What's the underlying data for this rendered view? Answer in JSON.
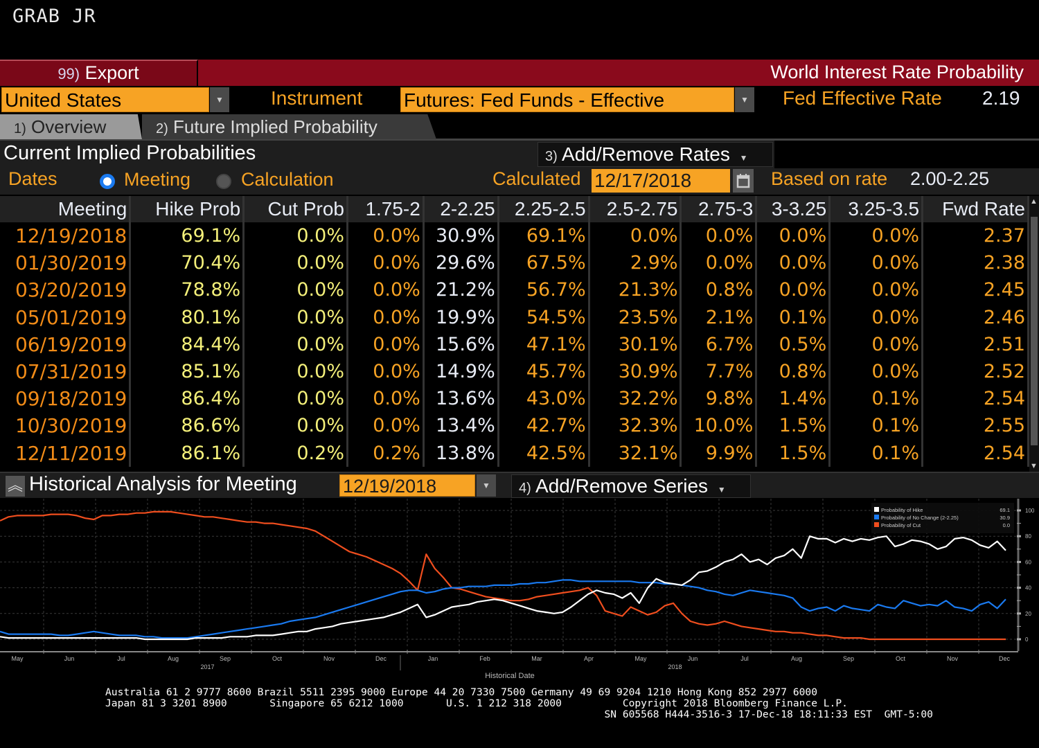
{
  "command": "GRAB JR",
  "titlebar": {
    "export_num": "99)",
    "export_label": "Export",
    "app_title": "World Interest Rate Probability"
  },
  "controls": {
    "country": "United States",
    "instrument_label": "Instrument",
    "instrument": "Futures: Fed Funds - Effective",
    "fed_rate_label": "Fed Effective Rate",
    "fed_rate_value": "2.19"
  },
  "tabs": [
    {
      "num": "1)",
      "label": "Overview",
      "active": false
    },
    {
      "num": "2)",
      "label": "Future Implied Probability",
      "active": true
    }
  ],
  "section": {
    "title": "Current Implied Probabilities",
    "add_remove_num": "3)",
    "add_remove_label": "Add/Remove Rates"
  },
  "dates_row": {
    "label": "Dates",
    "option_meeting": "Meeting",
    "option_calculation": "Calculation",
    "selected": "Meeting",
    "calculated_label": "Calculated",
    "calculated_date": "12/17/2018",
    "based_label": "Based on rate",
    "based_value": "2.00-2.25"
  },
  "table": {
    "columns": [
      "Meeting",
      "Hike Prob",
      "Cut Prob",
      "1.75-2",
      "2-2.25",
      "2.25-2.5",
      "2.5-2.75",
      "2.75-3",
      "3-3.25",
      "3.25-3.5",
      "Fwd Rate"
    ],
    "rows": [
      [
        "12/19/2018",
        "69.1%",
        "0.0%",
        "0.0%",
        "30.9%",
        "69.1%",
        "0.0%",
        "0.0%",
        "0.0%",
        "0.0%",
        "2.37"
      ],
      [
        "01/30/2019",
        "70.4%",
        "0.0%",
        "0.0%",
        "29.6%",
        "67.5%",
        "2.9%",
        "0.0%",
        "0.0%",
        "0.0%",
        "2.38"
      ],
      [
        "03/20/2019",
        "78.8%",
        "0.0%",
        "0.0%",
        "21.2%",
        "56.7%",
        "21.3%",
        "0.8%",
        "0.0%",
        "0.0%",
        "2.45"
      ],
      [
        "05/01/2019",
        "80.1%",
        "0.0%",
        "0.0%",
        "19.9%",
        "54.5%",
        "23.5%",
        "2.1%",
        "0.1%",
        "0.0%",
        "2.46"
      ],
      [
        "06/19/2019",
        "84.4%",
        "0.0%",
        "0.0%",
        "15.6%",
        "47.1%",
        "30.1%",
        "6.7%",
        "0.5%",
        "0.0%",
        "2.51"
      ],
      [
        "07/31/2019",
        "85.1%",
        "0.0%",
        "0.0%",
        "14.9%",
        "45.7%",
        "30.9%",
        "7.7%",
        "0.8%",
        "0.0%",
        "2.52"
      ],
      [
        "09/18/2019",
        "86.4%",
        "0.0%",
        "0.0%",
        "13.6%",
        "43.0%",
        "32.2%",
        "9.8%",
        "1.4%",
        "0.1%",
        "2.54"
      ],
      [
        "10/30/2019",
        "86.6%",
        "0.0%",
        "0.0%",
        "13.4%",
        "42.7%",
        "32.3%",
        "10.0%",
        "1.5%",
        "0.1%",
        "2.55"
      ],
      [
        "12/11/2019",
        "86.1%",
        "0.2%",
        "0.2%",
        "13.8%",
        "42.5%",
        "32.1%",
        "9.9%",
        "1.5%",
        "0.1%",
        "2.54"
      ]
    ]
  },
  "historical": {
    "title": "Historical Analysis for Meeting",
    "meeting_date": "12/19/2018",
    "add_series_num": "4)",
    "add_series_label": "Add/Remove Series"
  },
  "chart_data": {
    "type": "line",
    "title": "",
    "xlabel": "Historical Date",
    "ylabel": "",
    "ylim": [
      0,
      100
    ],
    "yticks": [
      0,
      20,
      40,
      60,
      80,
      100
    ],
    "grid": true,
    "legend_position": "top-right",
    "x_month_labels": [
      "May",
      "Jun",
      "Jul",
      "Aug",
      "Sep",
      "Oct",
      "Nov",
      "Dec",
      "Jan",
      "Feb",
      "Mar",
      "Apr",
      "May",
      "Jun",
      "Jul",
      "Aug",
      "Sep",
      "Oct",
      "Nov",
      "Dec"
    ],
    "x_year_labels": [
      {
        "label": "2017",
        "after_month_index": 4
      },
      {
        "label": "2018",
        "after_month_index": 13
      }
    ],
    "x_start": "2017-05-01",
    "x_end": "2018-12-17",
    "series": [
      {
        "name": "Probability of Hike",
        "color": "#ffffff",
        "last_value": "69.1",
        "values": [
          2,
          1,
          1,
          1,
          1,
          1,
          1,
          1,
          1,
          1,
          1,
          1,
          1,
          1,
          1,
          1,
          1,
          0,
          0,
          0,
          0,
          0,
          0,
          1,
          1,
          1,
          1,
          2,
          2,
          2,
          3,
          3,
          3,
          4,
          5,
          6,
          6,
          8,
          9,
          10,
          12,
          13,
          14,
          15,
          16,
          17,
          19,
          21,
          24,
          27,
          17,
          19,
          22,
          25,
          26,
          27,
          29,
          30,
          31,
          30,
          28,
          26,
          24,
          22,
          21,
          20,
          21,
          25,
          30,
          35,
          38,
          36,
          35,
          32,
          36,
          28,
          40,
          47,
          44,
          43,
          42,
          46,
          52,
          53,
          56,
          60,
          62,
          66,
          60,
          62,
          58,
          63,
          65,
          70,
          63,
          80,
          78,
          78,
          75,
          78,
          76,
          78,
          77,
          79,
          80,
          72,
          74,
          77,
          76,
          74,
          70,
          72,
          78,
          79,
          77,
          73,
          71,
          76,
          69
        ]
      },
      {
        "name": "Probability of No Change (2-2.25)",
        "color": "#1a7af0",
        "last_value": "30.9",
        "values": [
          6,
          4,
          4,
          4,
          4,
          4,
          4,
          3,
          3,
          4,
          5,
          6,
          5,
          4,
          3,
          3,
          3,
          2,
          2,
          1,
          1,
          1,
          1,
          2,
          3,
          4,
          5,
          6,
          7,
          8,
          9,
          10,
          11,
          12,
          14,
          15,
          16,
          17,
          19,
          21,
          23,
          25,
          27,
          29,
          31,
          33,
          35,
          37,
          38,
          38,
          36,
          37,
          39,
          40,
          40,
          41,
          41,
          41,
          42,
          42,
          42,
          43,
          43,
          44,
          44,
          45,
          46,
          46,
          45,
          45,
          45,
          45,
          45,
          45,
          45,
          44,
          44,
          44,
          43,
          43,
          42,
          41,
          40,
          38,
          37,
          35,
          34,
          36,
          38,
          37,
          36,
          35,
          34,
          32,
          25,
          22,
          24,
          25,
          22,
          26,
          24,
          23,
          22,
          27,
          25,
          24,
          30,
          28,
          26,
          27,
          26,
          30,
          25,
          24,
          22,
          27,
          29,
          24,
          31
        ]
      },
      {
        "name": "Probability of Cut",
        "color": "#f04e1e",
        "last_value": "0.0",
        "values": [
          92,
          95,
          96,
          96,
          96,
          96,
          97,
          97,
          97,
          96,
          94,
          93,
          96,
          96,
          97,
          97,
          98,
          98,
          99,
          99,
          99,
          98,
          97,
          96,
          95,
          95,
          94,
          93,
          92,
          91,
          91,
          90,
          90,
          89,
          88,
          87,
          86,
          84,
          80,
          76,
          72,
          68,
          66,
          64,
          61,
          58,
          55,
          51,
          45,
          38,
          66,
          55,
          48,
          40,
          39,
          37,
          35,
          33,
          32,
          31,
          30,
          30,
          31,
          33,
          34,
          35,
          36,
          37,
          38,
          40,
          34,
          22,
          20,
          18,
          25,
          22,
          19,
          21,
          26,
          28,
          20,
          14,
          12,
          11,
          12,
          14,
          12,
          10,
          9,
          8,
          7,
          6,
          6,
          5,
          5,
          4,
          3,
          3,
          2,
          1,
          1,
          1,
          0,
          0,
          0,
          0,
          0,
          0,
          0,
          0,
          0,
          0,
          0,
          0,
          0,
          0,
          0,
          0,
          0
        ]
      }
    ]
  },
  "footer": {
    "line1": "Australia 61 2 9777 8600 Brazil 5511 2395 9000 Europe 44 20 7330 7500 Germany 49 69 9204 1210 Hong Kong 852 2977 6000",
    "line2": "Japan 81 3 3201 8900       Singapore 65 6212 1000       U.S. 1 212 318 2000          Copyright 2018 Bloomberg Finance L.P.",
    "line3": "                                                                                  SN 605568 H444-3516-3 17-Dec-18 18:11:33 EST  GMT-5:00"
  }
}
